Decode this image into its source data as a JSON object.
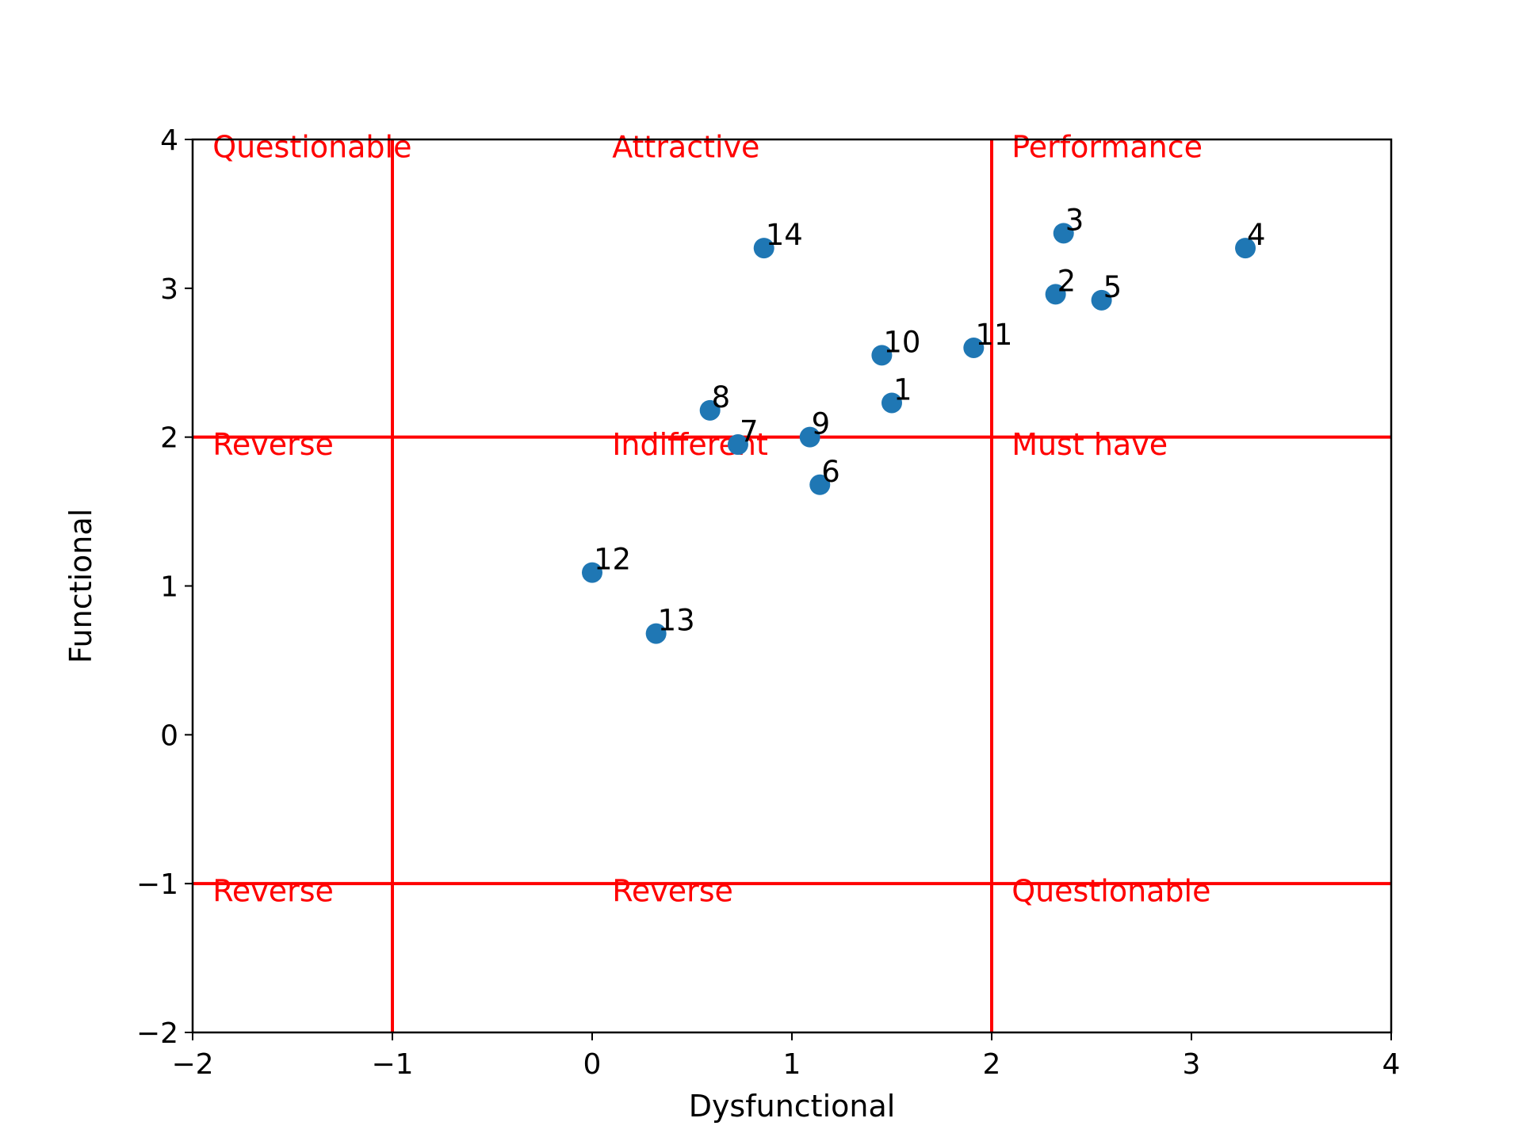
{
  "chart_data": {
    "type": "scatter",
    "xlabel": "Dysfunctional",
    "ylabel": "Functional",
    "xlim": [
      -2,
      4
    ],
    "ylim": [
      -2,
      4
    ],
    "xticks": [
      -2,
      -1,
      0,
      1,
      2,
      3,
      4
    ],
    "yticks": [
      -2,
      -1,
      0,
      1,
      2,
      3,
      4
    ],
    "xtick_labels": [
      "−2",
      "−1",
      "0",
      "1",
      "2",
      "3",
      "4"
    ],
    "ytick_labels": [
      "−2",
      "−1",
      "0",
      "1",
      "2",
      "3",
      "4"
    ],
    "grid": false,
    "marker_color": "#1f77b4",
    "line_color": "#ff0000",
    "vertical_lines": [
      -1,
      2
    ],
    "horizontal_lines": [
      2,
      -1
    ],
    "points": [
      {
        "label": "1",
        "x": 1.5,
        "y": 2.23
      },
      {
        "label": "2",
        "x": 2.32,
        "y": 2.96
      },
      {
        "label": "3",
        "x": 2.36,
        "y": 3.37
      },
      {
        "label": "4",
        "x": 3.27,
        "y": 3.27
      },
      {
        "label": "5",
        "x": 2.55,
        "y": 2.92
      },
      {
        "label": "6",
        "x": 1.14,
        "y": 1.68
      },
      {
        "label": "7",
        "x": 0.73,
        "y": 1.95
      },
      {
        "label": "8",
        "x": 0.59,
        "y": 2.18
      },
      {
        "label": "9",
        "x": 1.09,
        "y": 2.0
      },
      {
        "label": "10",
        "x": 1.45,
        "y": 2.55
      },
      {
        "label": "11",
        "x": 1.91,
        "y": 2.6
      },
      {
        "label": "12",
        "x": 0.0,
        "y": 1.09
      },
      {
        "label": "13",
        "x": 0.32,
        "y": 0.68
      },
      {
        "label": "14",
        "x": 0.86,
        "y": 3.27
      }
    ],
    "regions": [
      {
        "text": "Questionable",
        "x": -1.9,
        "y": 3.88
      },
      {
        "text": "Attractive",
        "x": 0.1,
        "y": 3.88
      },
      {
        "text": "Performance",
        "x": 2.1,
        "y": 3.88
      },
      {
        "text": "Reverse",
        "x": -1.9,
        "y": 1.88
      },
      {
        "text": "Indifferent",
        "x": 0.1,
        "y": 1.88
      },
      {
        "text": "Must have",
        "x": 2.1,
        "y": 1.88
      },
      {
        "text": "Reverse",
        "x": -1.9,
        "y": -1.12
      },
      {
        "text": "Reverse",
        "x": 0.1,
        "y": -1.12
      },
      {
        "text": "Questionable",
        "x": 2.1,
        "y": -1.12
      }
    ]
  }
}
